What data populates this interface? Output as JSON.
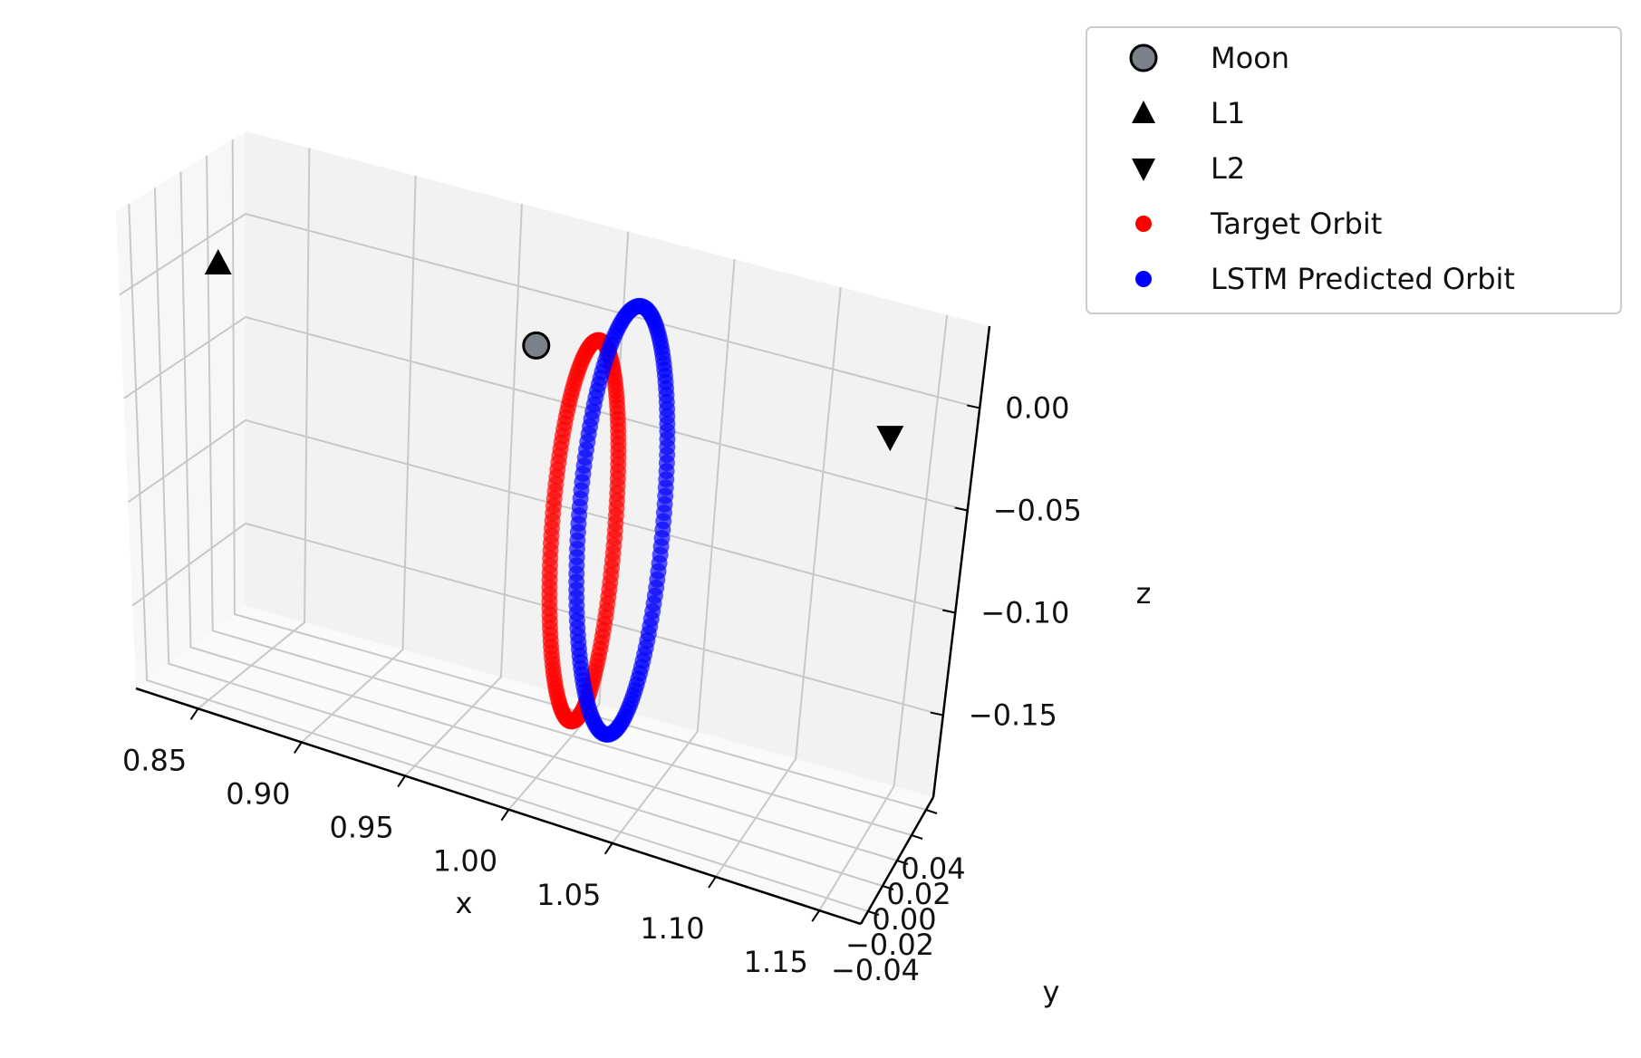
{
  "chart_data": {
    "type": "scatter",
    "projection": "3d",
    "title": "",
    "xlabel": "x",
    "ylabel": "y",
    "zlabel": "z",
    "xlim": [
      0.82,
      1.17
    ],
    "ylim": [
      -0.05,
      0.05
    ],
    "zlim": [
      -0.19,
      0.04
    ],
    "x_ticks": [
      "0.85",
      "0.90",
      "0.95",
      "1.00",
      "1.05",
      "1.10",
      "1.15"
    ],
    "y_ticks": [
      "−0.04",
      "−0.02",
      "0.00",
      "0.02",
      "0.04"
    ],
    "z_ticks": [
      "0.00",
      "−0.05",
      "−0.10",
      "−0.15"
    ],
    "grid": true,
    "legend_position": "upper-right-outside",
    "legend": [
      {
        "label": "Moon",
        "marker": "circle",
        "color": "#7a818a"
      },
      {
        "label": "L1",
        "marker": "triangle-up",
        "color": "#000000"
      },
      {
        "label": "L2",
        "marker": "triangle-down",
        "color": "#000000"
      },
      {
        "label": "Target Orbit",
        "marker": "dot",
        "color": "#ff0000"
      },
      {
        "label": "LSTM Predicted Orbit",
        "marker": "dot",
        "color": "#0000ff"
      }
    ],
    "points": [
      {
        "label": "Moon",
        "x": 0.9878,
        "y": 0.0,
        "z": 0.0
      },
      {
        "label": "L1",
        "x": 0.8369,
        "y": 0.0,
        "z": 0.0
      },
      {
        "label": "L2",
        "x": 1.1557,
        "y": 0.0,
        "z": 0.0
      }
    ],
    "series": [
      {
        "name": "Target Orbit",
        "color": "#ff0000",
        "parametric": {
          "x_center": 1.012,
          "x_amplitude": 0.015,
          "y_amplitude": 0.01,
          "z_center": -0.08,
          "z_amplitude": 0.085
        }
      },
      {
        "name": "LSTM Predicted Orbit",
        "color": "#0000ff",
        "parametric": {
          "x_center": 1.03,
          "x_amplitude": 0.02,
          "y_amplitude": 0.012,
          "z_center": -0.07,
          "z_amplitude": 0.095
        }
      }
    ]
  }
}
